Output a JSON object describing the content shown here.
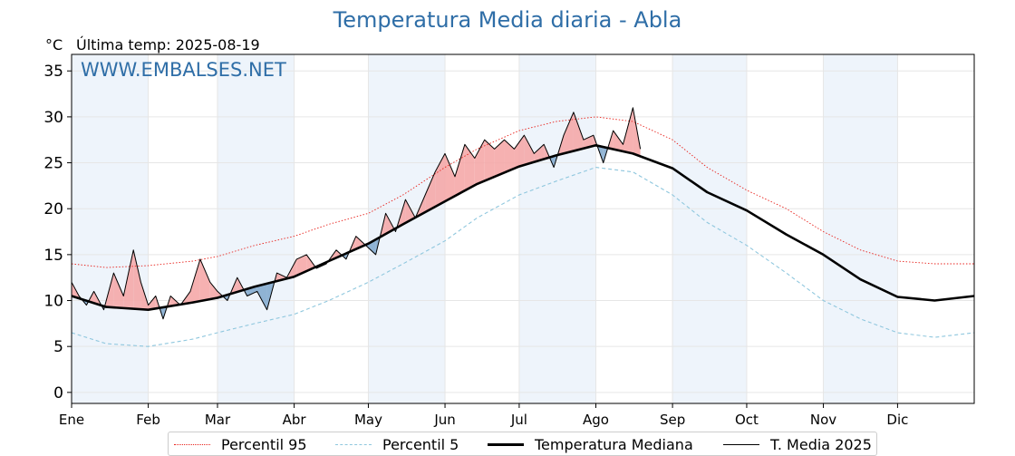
{
  "header": {
    "title": "Temperatura Media diaria - Abla",
    "unit": "°C",
    "last_temp": "Última temp: 2025-08-19",
    "watermark": "WWW.EMBALSES.NET"
  },
  "colors": {
    "title": "#2f6ea7",
    "watermark": "#2f6ea7",
    "p95": "#e8221c",
    "p5": "#8fc7de",
    "median": "#000000",
    "year": "#000000",
    "above_fill": "#f4a3a3",
    "below_fill": "#7ea7cc",
    "month_band": "#eef4fb"
  },
  "chart_data": {
    "type": "line",
    "title": "Temperatura Media diaria - Abla",
    "ylabel": "°C",
    "xlabel": "",
    "ylim": [
      -1.2,
      36.8
    ],
    "y_ticks": [
      0,
      5,
      10,
      15,
      20,
      25,
      30,
      35
    ],
    "x_range_days": [
      1,
      366
    ],
    "months": [
      {
        "label": "Ene",
        "day": 1
      },
      {
        "label": "Feb",
        "day": 32
      },
      {
        "label": "Mar",
        "day": 60
      },
      {
        "label": "Abr",
        "day": 91
      },
      {
        "label": "May",
        "day": 121
      },
      {
        "label": "Jun",
        "day": 152
      },
      {
        "label": "Jul",
        "day": 182
      },
      {
        "label": "Ago",
        "day": 213
      },
      {
        "label": "Sep",
        "day": 244
      },
      {
        "label": "Oct",
        "day": 274
      },
      {
        "label": "Nov",
        "day": 305
      },
      {
        "label": "Dic",
        "day": 335
      }
    ],
    "grid": true,
    "legend_position": "bottom",
    "series": [
      {
        "name": "Percentil 95",
        "style": "dotted-red",
        "x_day": [
          1,
          15,
          32,
          50,
          60,
          75,
          91,
          105,
          121,
          135,
          152,
          165,
          182,
          197,
          213,
          228,
          244,
          258,
          274,
          290,
          305,
          320,
          335,
          350,
          366
        ],
        "values": [
          14.0,
          13.6,
          13.8,
          14.3,
          14.8,
          16.0,
          17.0,
          18.3,
          19.5,
          21.5,
          24.5,
          26.5,
          28.5,
          29.5,
          30.0,
          29.5,
          27.5,
          24.5,
          22.0,
          20.0,
          17.5,
          15.5,
          14.3,
          14.0,
          14.0
        ]
      },
      {
        "name": "Percentil 5",
        "style": "dashed-lightblue",
        "x_day": [
          1,
          15,
          32,
          50,
          60,
          75,
          91,
          105,
          121,
          135,
          152,
          165,
          182,
          197,
          213,
          228,
          244,
          258,
          274,
          290,
          305,
          320,
          335,
          350,
          366
        ],
        "values": [
          6.5,
          5.3,
          5.0,
          5.8,
          6.5,
          7.5,
          8.5,
          10.0,
          12.0,
          14.0,
          16.5,
          19.0,
          21.5,
          23.0,
          24.5,
          24.0,
          21.5,
          18.5,
          16.0,
          13.0,
          10.0,
          8.0,
          6.5,
          6.0,
          6.5
        ]
      },
      {
        "name": "Temperatura Mediana",
        "style": "solid-thick-black",
        "x_day": [
          1,
          15,
          32,
          50,
          60,
          75,
          91,
          105,
          121,
          135,
          152,
          165,
          182,
          197,
          213,
          228,
          244,
          258,
          274,
          290,
          305,
          320,
          335,
          350,
          366
        ],
        "values": [
          10.5,
          9.3,
          9.0,
          9.8,
          10.3,
          11.5,
          12.6,
          14.3,
          16.2,
          18.3,
          20.8,
          22.7,
          24.6,
          25.8,
          26.9,
          26.0,
          24.4,
          21.8,
          19.8,
          17.2,
          15.0,
          12.3,
          10.4,
          10.0,
          10.5
        ]
      },
      {
        "name": "T. Media 2025",
        "style": "solid-thin-black",
        "x_day": [
          1,
          4,
          7,
          10,
          14,
          18,
          22,
          26,
          29,
          32,
          35,
          38,
          41,
          45,
          49,
          53,
          57,
          60,
          64,
          68,
          72,
          76,
          80,
          84,
          88,
          92,
          96,
          100,
          104,
          108,
          112,
          116,
          120,
          124,
          128,
          132,
          136,
          140,
          144,
          148,
          152,
          156,
          160,
          164,
          168,
          172,
          176,
          180,
          184,
          188,
          192,
          196,
          200,
          204,
          208,
          212,
          216,
          220,
          224,
          228,
          231
        ],
        "values": [
          12.0,
          10.5,
          9.5,
          11.0,
          9.0,
          13.0,
          10.5,
          15.5,
          12.0,
          9.5,
          10.5,
          8.0,
          10.5,
          9.5,
          11.0,
          14.5,
          12.0,
          11.0,
          10.0,
          12.5,
          10.5,
          11.0,
          9.0,
          13.0,
          12.5,
          14.5,
          15.0,
          13.5,
          14.0,
          15.5,
          14.5,
          17.0,
          16.0,
          15.0,
          19.5,
          17.5,
          21.0,
          19.0,
          21.5,
          24.0,
          26.0,
          23.5,
          27.0,
          25.5,
          27.5,
          26.5,
          27.5,
          26.5,
          28.0,
          26.0,
          27.0,
          24.5,
          28.0,
          30.5,
          27.5,
          28.0,
          25.0,
          28.5,
          27.0,
          31.0,
          26.5
        ]
      }
    ]
  },
  "legend": {
    "p95_label": "Percentil 95",
    "p5_label": "Percentil 5",
    "median_label": "Temperatura Mediana",
    "year_label": "T. Media 2025"
  }
}
